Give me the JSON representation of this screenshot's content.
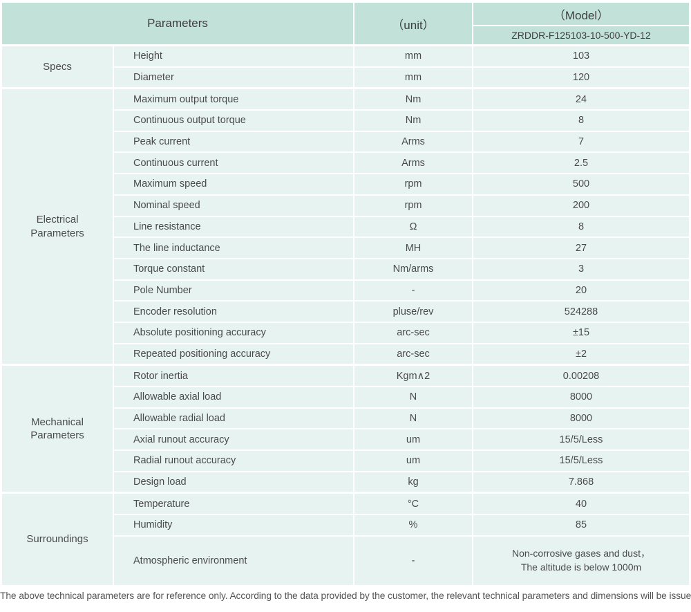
{
  "header": {
    "parameters_label": "Parameters",
    "unit_label": "（unit）",
    "model_label": "（Model）",
    "model_value": "ZRDDR-F125103-10-500-YD-12"
  },
  "sections": [
    {
      "label": "Specs",
      "rows": [
        {
          "name": "Height",
          "unit": "mm",
          "value": "103"
        },
        {
          "name": "Diameter",
          "unit": "mm",
          "value": "120"
        }
      ]
    },
    {
      "label": "Electrical\nParameters",
      "rows": [
        {
          "name": "Maximum output torque",
          "unit": "Nm",
          "value": "24"
        },
        {
          "name": "Continuous output torque",
          "unit": "Nm",
          "value": "8"
        },
        {
          "name": "Peak current",
          "unit": "Arms",
          "value": "7"
        },
        {
          "name": "Continuous current",
          "unit": "Arms",
          "value": "2.5"
        },
        {
          "name": "Maximum speed",
          "unit": "rpm",
          "value": "500"
        },
        {
          "name": "Nominal speed",
          "unit": "rpm",
          "value": "200"
        },
        {
          "name": "Line resistance",
          "unit": "Ω",
          "value": "8"
        },
        {
          "name": "The line inductance",
          "unit": "MH",
          "value": "27"
        },
        {
          "name": "Torque constant",
          "unit": "Nm/arms",
          "value": "3"
        },
        {
          "name": "Pole Number",
          "unit": "-",
          "value": "20"
        },
        {
          "name": "Encoder resolution",
          "unit": "pluse/rev",
          "value": "524288"
        },
        {
          "name": "Absolute positioning accuracy",
          "unit": "arc-sec",
          "value": "±15"
        },
        {
          "name": "Repeated positioning accuracy",
          "unit": "arc-sec",
          "value": "±2"
        }
      ]
    },
    {
      "label": "Mechanical\nParameters",
      "rows": [
        {
          "name": "Rotor inertia",
          "unit": "Kgm∧2",
          "value": "0.00208"
        },
        {
          "name": "Allowable axial load",
          "unit": "N",
          "value": "8000"
        },
        {
          "name": "Allowable radial load",
          "unit": "N",
          "value": "8000"
        },
        {
          "name": "Axial runout accuracy",
          "unit": "um",
          "value": "15/5/Less"
        },
        {
          "name": "Radial runout accuracy",
          "unit": "um",
          "value": "15/5/Less"
        },
        {
          "name": "Design load",
          "unit": "kg",
          "value": "7.868"
        }
      ]
    },
    {
      "label": "Surroundings",
      "rows": [
        {
          "name": "Temperature",
          "unit": "°C",
          "value": "40"
        },
        {
          "name": "Humidity",
          "unit": "%",
          "value": "85"
        },
        {
          "name": "Atmospheric environment",
          "unit": "-",
          "value": "Non-corrosive gases and dust，\nThe altitude is below 1000m",
          "tall": true
        }
      ]
    }
  ],
  "footer_note": "The above technical parameters are for reference only. According to the data provided by the customer, the relevant technical parameters and dimensions will be issued."
}
